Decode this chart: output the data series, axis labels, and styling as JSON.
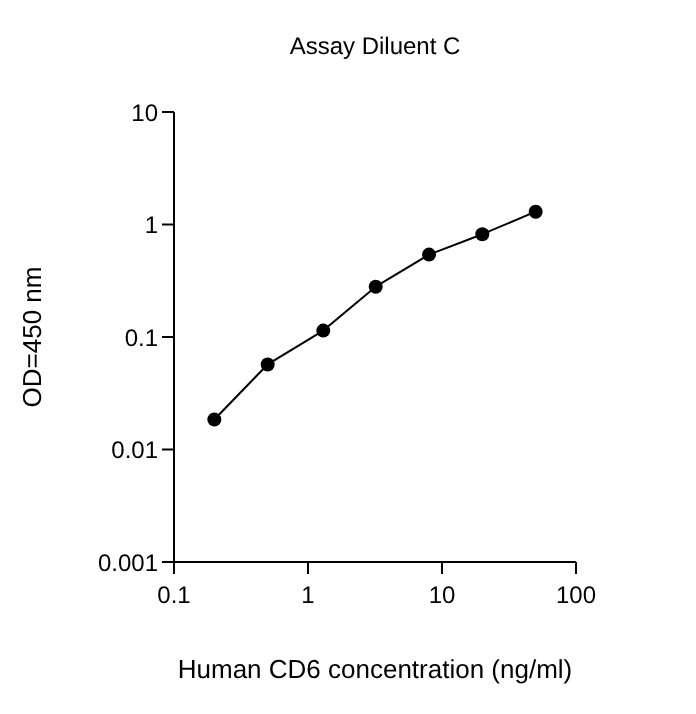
{
  "chart_data": {
    "type": "line",
    "title": "Assay Diluent C",
    "xlabel": "Human CD6 concentration (ng/ml)",
    "ylabel": "OD=450 nm",
    "x": [
      0.2,
      0.5,
      1.3,
      3.2,
      8,
      20,
      50
    ],
    "series": [
      {
        "color": "#000000",
        "values": [
          0.0185,
          0.057,
          0.114,
          0.28,
          0.54,
          0.82,
          1.3
        ]
      }
    ],
    "log": "xy",
    "xlim": [
      0.1,
      100
    ],
    "xticks": [
      0.1,
      1,
      10,
      100
    ],
    "ylim": [
      0.001,
      10
    ],
    "yticks": [
      0.001,
      0.01,
      0.1,
      1,
      10
    ],
    "grid": false,
    "legend": false,
    "marker": "circle",
    "line_style": "solid"
  }
}
